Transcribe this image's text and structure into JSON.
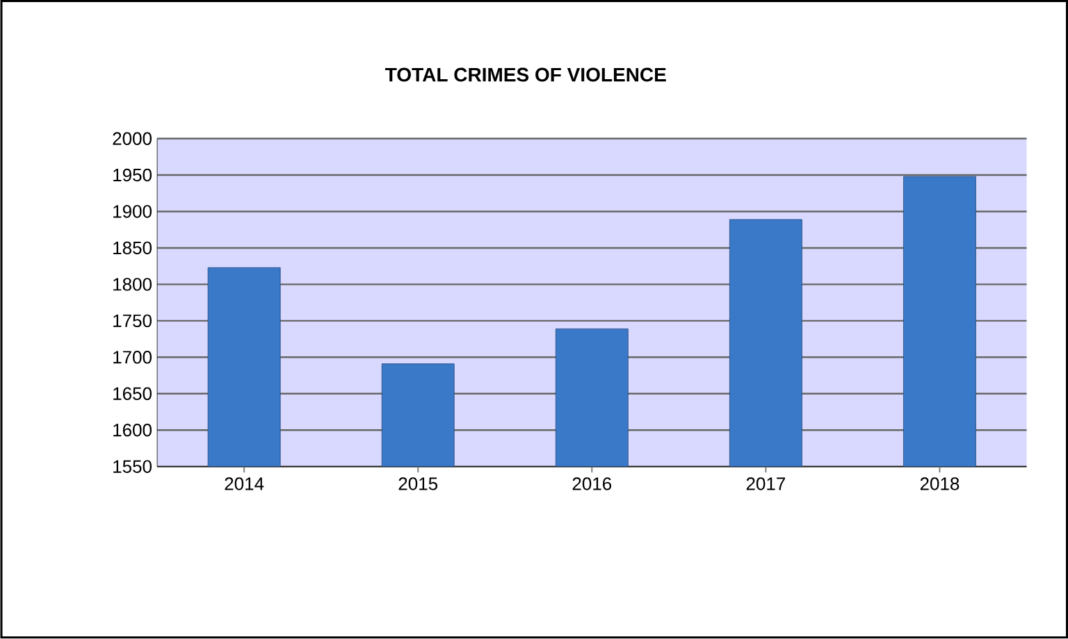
{
  "chart_data": {
    "type": "bar",
    "title": "TOTAL CRIMES OF VIOLENCE",
    "categories": [
      "2014",
      "2015",
      "2016",
      "2017",
      "2018"
    ],
    "values": [
      1823,
      1691,
      1739,
      1889,
      1948
    ],
    "color": "#3a78c8",
    "ylim": [
      1550,
      2000
    ],
    "yticks": [
      1550,
      1600,
      1650,
      1700,
      1750,
      1800,
      1850,
      1900,
      1950,
      2000
    ],
    "grid": "y"
  }
}
